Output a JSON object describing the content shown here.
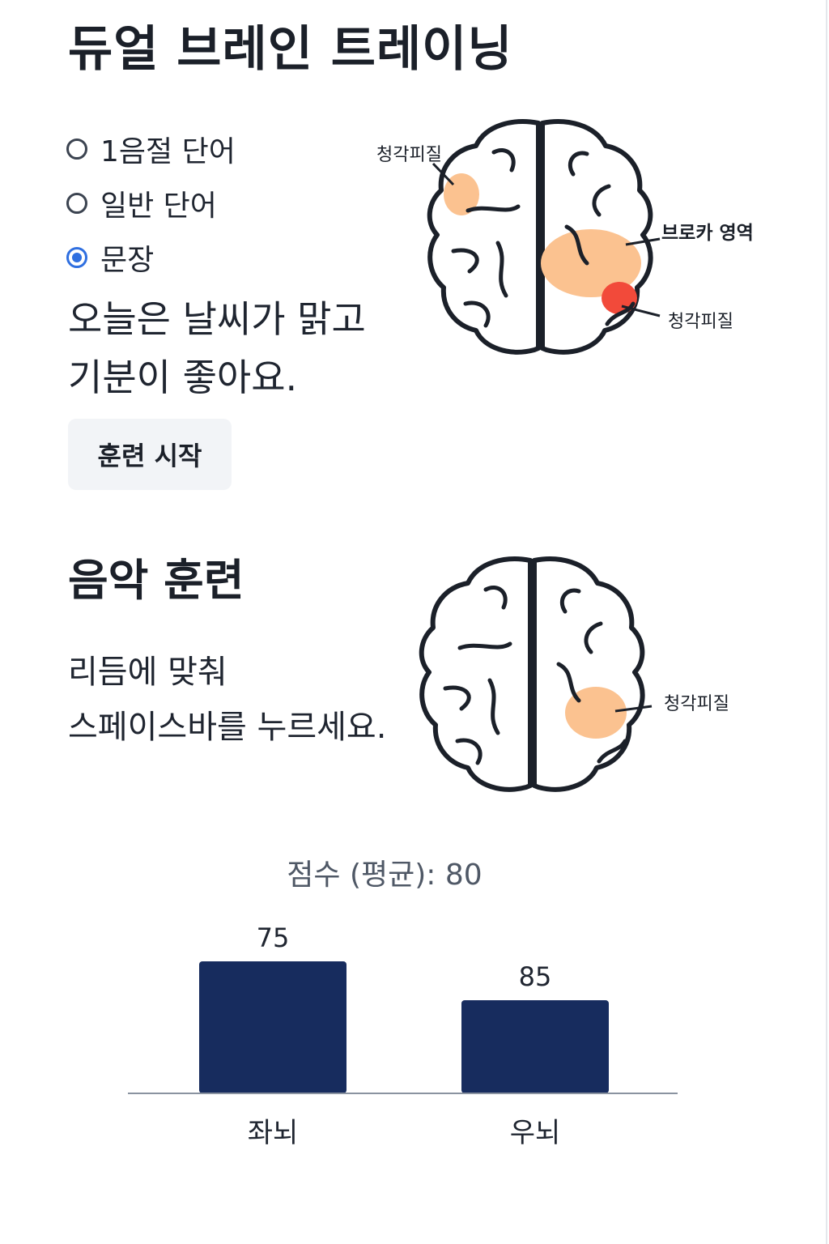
{
  "page": {
    "title": "듀얼 브레인 트레이닝"
  },
  "training_mode": {
    "options": [
      {
        "label": "1음절 단어",
        "selected": false
      },
      {
        "label": "일반 단어",
        "selected": false
      },
      {
        "label": "문장",
        "selected": true
      }
    ],
    "selected_value": "문장"
  },
  "prompt": {
    "line1": "오늘은 날씨가 맑고",
    "line2": "기분이 좋아요."
  },
  "start_button": {
    "label": "훈련 시작"
  },
  "brain_diagram_1": {
    "labels": {
      "top_left": "청각피질",
      "right": "브로카 영역",
      "bottom_right": "청각피질"
    },
    "colors": {
      "highlight": "#fbc290",
      "hotspot": "#f24a3a",
      "outline": "#1b2029"
    }
  },
  "music_section": {
    "title": "음악 훈련",
    "instruction_line1": "리듬에 맞춰",
    "instruction_line2": "스페이스바를 누르세요."
  },
  "brain_diagram_2": {
    "labels": {
      "right": "청각피질"
    }
  },
  "chart_data": {
    "type": "bar",
    "title": "점수 (평균): 80",
    "categories": [
      "좌뇌",
      "우뇌"
    ],
    "values": [
      75,
      85
    ],
    "value_labels": [
      "75",
      "85"
    ],
    "ylim": [
      0,
      100
    ],
    "colors": {
      "bar": "#172c5e",
      "baseline": "#8a93a0"
    }
  }
}
